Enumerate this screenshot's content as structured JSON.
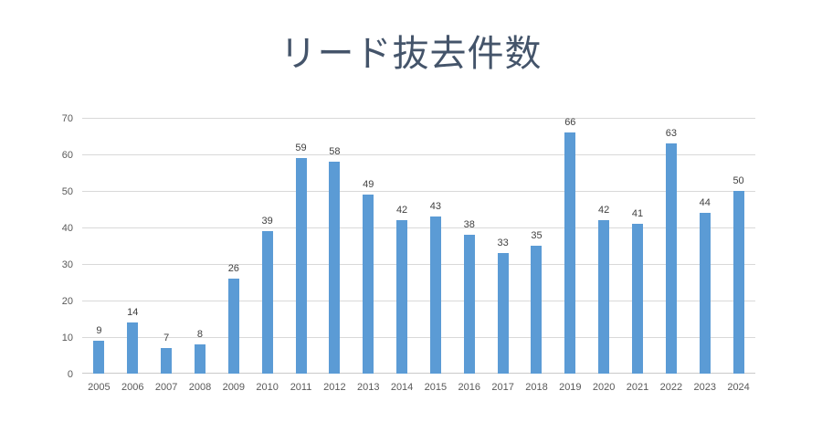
{
  "page": {
    "background": "#ffffff"
  },
  "chart_data": {
    "type": "bar",
    "title": "リード抜去件数",
    "categories": [
      "2005",
      "2006",
      "2007",
      "2008",
      "2009",
      "2010",
      "2011",
      "2012",
      "2013",
      "2014",
      "2015",
      "2016",
      "2017",
      "2018",
      "2019",
      "2020",
      "2021",
      "2022",
      "2023",
      "2024"
    ],
    "values": [
      9,
      14,
      7,
      8,
      26,
      39,
      59,
      58,
      49,
      42,
      43,
      38,
      33,
      35,
      66,
      42,
      41,
      63,
      44,
      50
    ],
    "xlabel": "",
    "ylabel": "",
    "ylim": [
      0,
      70
    ],
    "y_ticks": [
      0,
      10,
      20,
      30,
      40,
      50,
      60,
      70
    ],
    "grid": true,
    "legend": false,
    "colors": {
      "bar": "#5B9BD5",
      "title": "#44546A",
      "axis_label": "#595959",
      "value_label": "#404040",
      "gridline": "#D9D9D9",
      "axis_line": "#C9C9C9"
    }
  }
}
